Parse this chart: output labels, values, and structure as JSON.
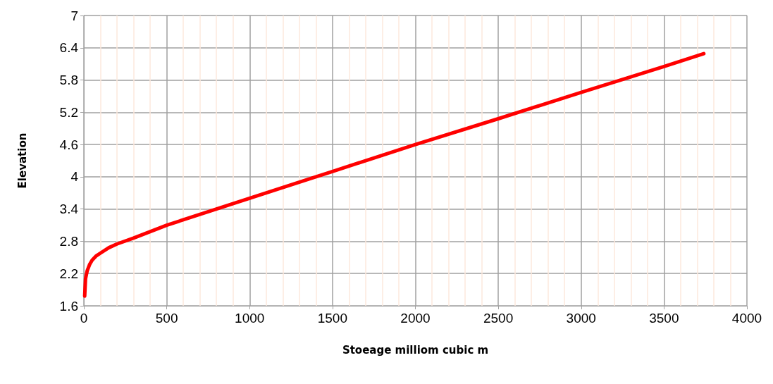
{
  "chart_data": {
    "type": "line",
    "xlabel": "Stoeage milliom cubic m",
    "ylabel": "Elevation",
    "x": [
      5,
      10,
      20,
      35,
      50,
      75,
      100,
      150,
      200,
      300,
      500,
      1000,
      1500,
      2000,
      2500,
      3000,
      3500,
      3740
    ],
    "series": [
      {
        "color": "#ff0000",
        "values": [
          1.78,
          2.1,
          2.25,
          2.37,
          2.45,
          2.53,
          2.58,
          2.68,
          2.75,
          2.86,
          3.1,
          3.6,
          4.1,
          4.6,
          5.08,
          5.57,
          6.05,
          6.29
        ]
      }
    ],
    "xlim": [
      0,
      4000
    ],
    "xticks": [
      0,
      500,
      1000,
      1500,
      2000,
      2500,
      3000,
      3500,
      4000
    ],
    "ylim": [
      1.6,
      7
    ],
    "yticks": [
      1.6,
      2.2,
      2.8,
      3.4,
      4,
      4.6,
      5.2,
      5.8,
      6.4,
      7
    ],
    "grid": true,
    "marker": "none",
    "line_style": "solid"
  }
}
